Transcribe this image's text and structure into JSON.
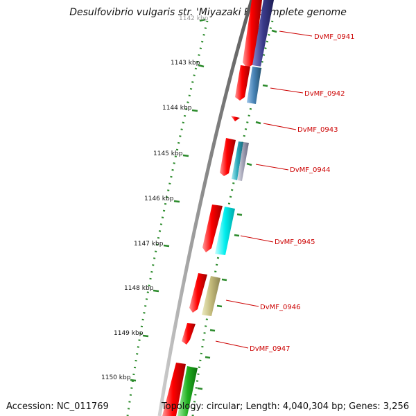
{
  "title": "Desulfovibrio vulgaris str. 'Miyazaki F', complete genome",
  "accession": "Accession: NC_011769",
  "summary": "Topology: circular; Length: 4,040,304 bp; Genes: 3,256",
  "ticks": [
    "1143 kbp",
    "1144 kbp",
    "1145 kbp",
    "1146 kbp",
    "1147 kbp",
    "1148 kbp",
    "1149 kbp",
    "1150 kbp"
  ],
  "gene_labels": [
    "DvMF_0941",
    "DvMF_0942",
    "DvMF_0943",
    "DvMF_0944",
    "DvMF_0945",
    "DvMF_0946",
    "DvMF_0947"
  ],
  "colors": {
    "tick": "#2a8a2a",
    "label": "#cc0000",
    "gene": "#ff0000",
    "backbone": "#888888"
  }
}
